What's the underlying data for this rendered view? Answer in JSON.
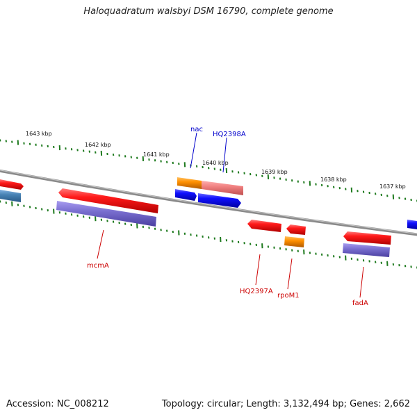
{
  "title": "Haloquadratum walsbyi DSM 16790, complete genome",
  "footer": {
    "accession": "Accession: NC_008212",
    "summary": "Topology: circular; Length: 3,132,494 bp; Genes: 2,662"
  },
  "colors": {
    "backbone": "#888888",
    "ticks": "#1e7a1e",
    "forward_label": "#0000cc",
    "reverse_label": "#cc0000"
  },
  "tick_labels": [
    "1643 kbp",
    "1642 kbp",
    "1641 kbp",
    "1640 kbp",
    "1639 kbp",
    "1638 kbp",
    "1637 kbp"
  ],
  "gene_labels": [
    {
      "name": "nac",
      "strand": "forward"
    },
    {
      "name": "HQ2398A",
      "strand": "forward"
    },
    {
      "name": "mcmA",
      "strand": "reverse"
    },
    {
      "name": "HQ2397A",
      "strand": "reverse"
    },
    {
      "name": "rpoM1",
      "strand": "reverse"
    },
    {
      "name": "fadA",
      "strand": "reverse"
    }
  ],
  "feature_colors": {
    "red_gene": "#ff0000",
    "blue_gene": "#0000ee",
    "orange_gene": "#ff8c00",
    "pink_gene": "#f08080",
    "purple_gene": "#7a6fd0",
    "steel_gene": "#4682b4"
  }
}
